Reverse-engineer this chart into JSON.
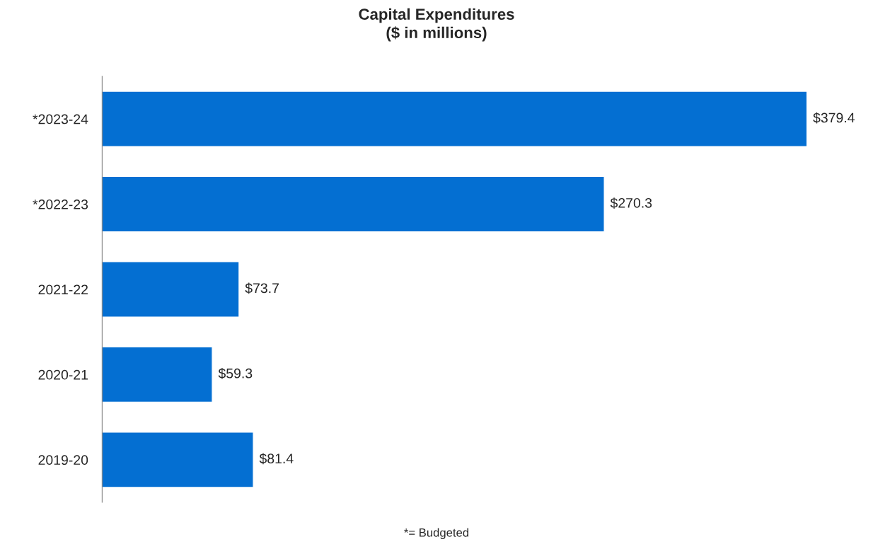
{
  "chart_data": {
    "type": "bar",
    "orientation": "horizontal",
    "title": "Capital Expenditures\n($ in millions)",
    "categories": [
      "*2023-24",
      "*2022-23",
      "2021-22",
      "2020-21",
      "2019-20"
    ],
    "values": [
      379.4,
      270.3,
      73.7,
      59.3,
      81.4
    ],
    "value_labels": [
      "$379.4",
      "$270.3",
      "$73.7",
      "$59.3",
      "$81.4"
    ],
    "color": "#046fd2",
    "tick_labels": "y",
    "grid": false,
    "legend": false,
    "annotations": [
      "*= Budgeted"
    ]
  }
}
